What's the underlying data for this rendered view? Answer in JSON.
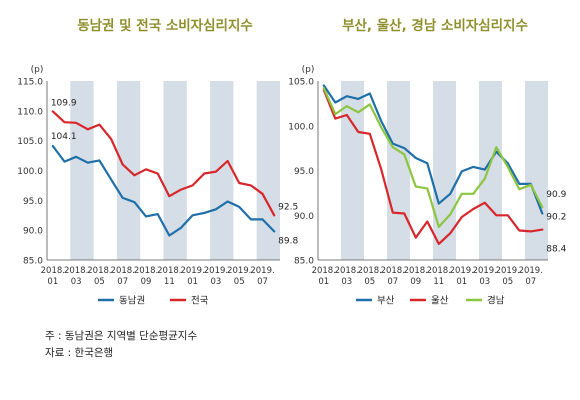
{
  "chart_data": [
    {
      "type": "line",
      "title": "동남권 및 전국 소비자심리지수",
      "unit": "(p)",
      "ylim": [
        85.0,
        115.0
      ],
      "yticks": [
        "115.0",
        "110.0",
        "105.0",
        "100.0",
        "95.0",
        "90.0",
        "85.0"
      ],
      "x_labels": [
        [
          "2018.",
          "01"
        ],
        [
          "2018.",
          "03"
        ],
        [
          "2018.",
          "05"
        ],
        [
          "2018.",
          "07"
        ],
        [
          "2018.",
          "09"
        ],
        [
          "2018.",
          "11"
        ],
        [
          "2019.",
          "01"
        ],
        [
          "2019.",
          "03"
        ],
        [
          "2019.",
          "05"
        ],
        [
          "2019.",
          "07"
        ]
      ],
      "legend_position": "bottom",
      "series": [
        {
          "name": "동남권",
          "color": "#1f6fa8",
          "values": [
            104.1,
            101.5,
            102.3,
            101.3,
            101.7,
            98.5,
            95.4,
            94.7,
            92.3,
            92.7,
            89.1,
            90.4,
            92.5,
            92.9,
            93.5,
            94.8,
            93.9,
            91.8,
            91.8,
            89.8
          ]
        },
        {
          "name": "전국",
          "color": "#d8262b",
          "values": [
            109.9,
            108.1,
            108.0,
            106.9,
            107.7,
            105.3,
            101.0,
            99.2,
            100.2,
            99.5,
            95.7,
            96.8,
            97.5,
            99.5,
            99.8,
            101.6,
            97.9,
            97.5,
            96.1,
            92.5
          ]
        }
      ],
      "annotations": [
        {
          "text": "109.9",
          "series": 1,
          "index": 0
        },
        {
          "text": "104.1",
          "series": 0,
          "index": 0
        },
        {
          "text": "92.5",
          "series": 1,
          "index": 19
        },
        {
          "text": "89.8",
          "series": 0,
          "index": 19
        }
      ]
    },
    {
      "type": "line",
      "title": "부산, 울산, 경남 소비자심리지수",
      "unit": "(p)",
      "ylim": [
        85.0,
        105.0
      ],
      "yticks": [
        "105.0",
        "100.0",
        "95.0",
        "90.0",
        "85.0"
      ],
      "x_labels": [
        [
          "2018.",
          "01"
        ],
        [
          "2018.",
          "03"
        ],
        [
          "2018.",
          "05"
        ],
        [
          "2018.",
          "07"
        ],
        [
          "2018.",
          "09"
        ],
        [
          "2018.",
          "11"
        ],
        [
          "2019.",
          "01"
        ],
        [
          "2019.",
          "03"
        ],
        [
          "2019.",
          "05"
        ],
        [
          "2019.",
          "07"
        ]
      ],
      "legend_position": "bottom",
      "series": [
        {
          "name": "부산",
          "color": "#1f6fa8",
          "values": [
            104.5,
            102.6,
            103.3,
            103.0,
            103.6,
            100.5,
            98.0,
            97.5,
            96.4,
            95.8,
            91.3,
            92.4,
            94.9,
            95.4,
            95.1,
            97.1,
            95.8,
            93.5,
            93.5,
            90.2
          ]
        },
        {
          "name": "울산",
          "color": "#d8262b",
          "values": [
            104.0,
            100.8,
            101.2,
            99.3,
            99.1,
            95.1,
            90.3,
            90.2,
            87.5,
            89.3,
            86.8,
            88.0,
            89.8,
            90.7,
            91.4,
            90.0,
            90.0,
            88.3,
            88.2,
            88.4
          ]
        },
        {
          "name": "경남",
          "color": "#8cc63f",
          "values": [
            104.2,
            101.3,
            102.2,
            101.5,
            102.4,
            99.8,
            97.6,
            96.8,
            93.2,
            93.0,
            88.7,
            90.1,
            92.4,
            92.4,
            94.1,
            97.6,
            95.4,
            92.9,
            93.4,
            90.9
          ]
        }
      ],
      "annotations": [
        {
          "text": "90.9",
          "series": 2,
          "index": 19
        },
        {
          "text": "90.2",
          "series": 0,
          "index": 19
        },
        {
          "text": "88.4",
          "series": 1,
          "index": 19
        }
      ]
    }
  ],
  "notes": {
    "line1": "주 : 동남권은 지역별 단순평균지수",
    "line2": "자료 : 한국은행"
  }
}
